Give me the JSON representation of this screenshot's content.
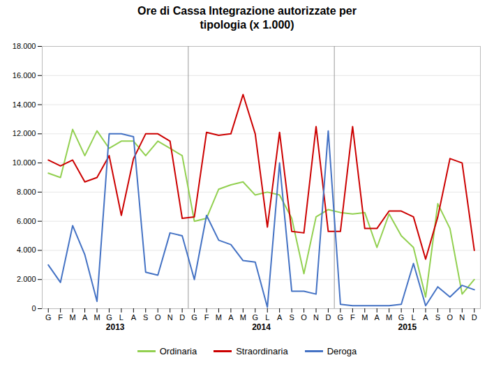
{
  "chart_data": {
    "type": "line",
    "title": "Ore di Cassa  Integrazione autorizzate per\ntipologia (x 1.000)",
    "categories": [
      "G",
      "F",
      "M",
      "A",
      "M",
      "G",
      "L",
      "A",
      "S",
      "O",
      "N",
      "D",
      "G",
      "F",
      "M",
      "A",
      "M",
      "G",
      "L",
      "A",
      "S",
      "O",
      "N",
      "D",
      "G",
      "F",
      "M",
      "A",
      "M",
      "G",
      "L",
      "A",
      "S",
      "O",
      "N",
      "D"
    ],
    "annotations": [
      "2013",
      "2014",
      "2015"
    ],
    "series": [
      {
        "name": "Ordinaria",
        "color": "#92D050",
        "values": [
          9300,
          9000,
          12300,
          10500,
          12200,
          11000,
          11500,
          11500,
          10500,
          11500,
          11000,
          10500,
          6000,
          6200,
          8200,
          8500,
          8700,
          7800,
          8000,
          7800,
          6200,
          2400,
          6300,
          6800,
          6600,
          6500,
          6600,
          4200,
          6500,
          5000,
          4200,
          800,
          7200,
          5500,
          1000,
          2000
        ]
      },
      {
        "name": "Straordinaria",
        "color": "#CC0000",
        "values": [
          10200,
          9800,
          10200,
          8700,
          9000,
          10500,
          6400,
          10300,
          12000,
          12000,
          11500,
          6200,
          6300,
          12100,
          11900,
          12000,
          14700,
          12000,
          5600,
          12100,
          5300,
          5200,
          12500,
          5300,
          5300,
          12500,
          5500,
          5500,
          6700,
          6700,
          6300,
          3400,
          6300,
          10300,
          10000,
          4000
        ]
      },
      {
        "name": "Deroga",
        "color": "#4472C4",
        "values": [
          3000,
          1800,
          5700,
          3700,
          500,
          12000,
          12000,
          11800,
          2500,
          2300,
          5200,
          5000,
          2000,
          6400,
          4700,
          4400,
          3300,
          3200,
          100,
          10000,
          1200,
          1200,
          1000,
          12200,
          300,
          200,
          200,
          200,
          200,
          300,
          3100,
          200,
          1500,
          800,
          1600,
          1300
        ]
      }
    ],
    "ylim": [
      0,
      18000
    ],
    "yticks": [
      0,
      {
        "value": 2000,
        "label": "2.000"
      },
      {
        "value": 4000,
        "label": "4.000"
      },
      {
        "value": 6000,
        "label": "6.000"
      },
      {
        "value": 8000,
        "label": "8.000"
      },
      {
        "value": 10000,
        "label": "10.000"
      },
      {
        "value": 12000,
        "label": "12.000"
      },
      {
        "value": 14000,
        "label": "14.000"
      },
      {
        "value": 16000,
        "label": "16.000"
      },
      {
        "value": 18000,
        "label": "18.000"
      }
    ],
    "grid": true,
    "legend": "bottom"
  }
}
